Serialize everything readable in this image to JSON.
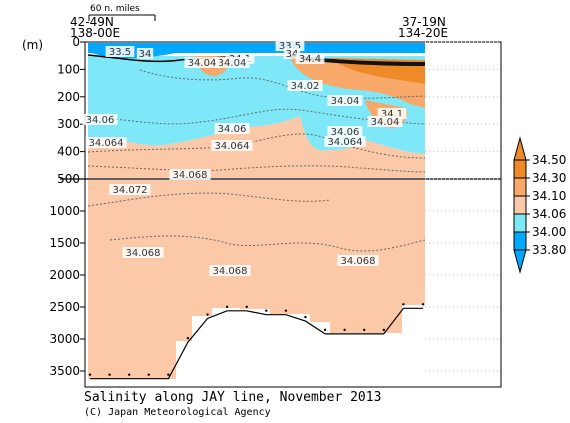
{
  "chart_data": {
    "type": "heatmap",
    "title": "Salinity along JAY line, November 2013",
    "credit": "(C) Japan Meteorological Agency",
    "ylabel": "(m)",
    "scale_label": "60 n. miles",
    "left_end": {
      "lat": "42-49N",
      "lon": "138-00E"
    },
    "right_end": {
      "lat": "37-19N",
      "lon": "134-20E"
    },
    "upper_panel": {
      "ylim": [
        0,
        500
      ],
      "yticks": [
        "0",
        "100",
        "200",
        "300",
        "400",
        "500"
      ]
    },
    "lower_panel": {
      "ylim": [
        500,
        3750
      ],
      "yticks": [
        "1000",
        "1500",
        "2000",
        "2500",
        "3000",
        "3500"
      ]
    },
    "colorbar": {
      "levels": [
        "33.80",
        "34.00",
        "34.06",
        "34.10",
        "34.30",
        "34.50"
      ],
      "colors": [
        "#00a8ff",
        "#7ee8f8",
        "#fbc9a8",
        "#f8a868",
        "#ee8a28"
      ]
    },
    "contour_labels": {
      "upper": [
        {
          "text": "33.5"
        },
        {
          "text": "34"
        },
        {
          "text": "34.1"
        },
        {
          "text": "34.04"
        },
        {
          "text": "33.5"
        },
        {
          "text": "34"
        },
        {
          "text": "34.4"
        },
        {
          "text": "34.04"
        },
        {
          "text": "34.02"
        },
        {
          "text": "34.04"
        },
        {
          "text": "34.1"
        },
        {
          "text": "34.04"
        },
        {
          "text": "34.06"
        },
        {
          "text": "34.06"
        },
        {
          "text": "34.06"
        },
        {
          "text": "34.064"
        },
        {
          "text": "34.064"
        },
        {
          "text": "34.064"
        },
        {
          "text": "34.068"
        }
      ],
      "lower": [
        {
          "text": "34.072"
        },
        {
          "text": "34.068"
        },
        {
          "text": "34.068"
        },
        {
          "text": "34.068"
        }
      ]
    },
    "bottom_depth_m": [
      3620,
      3620,
      3620,
      3620,
      3620,
      3050,
      2680,
      2560,
      2560,
      2620,
      2620,
      2720,
      2920,
      2920,
      2920,
      2920,
      2520,
      2520
    ]
  }
}
